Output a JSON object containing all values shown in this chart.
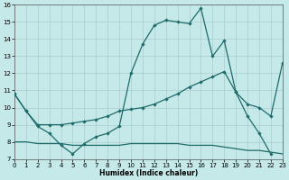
{
  "xlabel": "Humidex (Indice chaleur)",
  "background_color": "#c5e8e8",
  "grid_color": "#aacccc",
  "line_color": "#1e6b6b",
  "x_min": 0,
  "x_max": 23,
  "y_min": 7,
  "y_max": 16,
  "series1_x": [
    0,
    1,
    2,
    3,
    4,
    5,
    6,
    7,
    8,
    9,
    10,
    11,
    12,
    13,
    14,
    15,
    16,
    17,
    18,
    19,
    20,
    21,
    22
  ],
  "series1_y": [
    10.8,
    9.8,
    8.9,
    8.5,
    7.8,
    7.3,
    7.9,
    8.3,
    8.5,
    8.9,
    12.0,
    13.7,
    14.8,
    15.1,
    15.0,
    14.9,
    15.8,
    13.0,
    13.9,
    10.9,
    9.5,
    8.5,
    7.3
  ],
  "series2_x": [
    0,
    1,
    2,
    3,
    4,
    5,
    6,
    7,
    8,
    9,
    10,
    11,
    12,
    13,
    14,
    15,
    16,
    17,
    18,
    19,
    20,
    21,
    22,
    23
  ],
  "series2_y": [
    10.8,
    9.8,
    9.0,
    9.0,
    9.0,
    9.1,
    9.2,
    9.3,
    9.5,
    9.8,
    9.9,
    10.0,
    10.2,
    10.5,
    10.8,
    11.2,
    11.5,
    11.8,
    12.1,
    10.9,
    10.2,
    10.0,
    9.5,
    12.6
  ],
  "series3_x": [
    0,
    1,
    2,
    3,
    4,
    5,
    6,
    7,
    8,
    9,
    10,
    11,
    12,
    13,
    14,
    15,
    16,
    17,
    18,
    19,
    20,
    21,
    22,
    23
  ],
  "series3_y": [
    8.0,
    8.0,
    7.9,
    7.9,
    7.9,
    7.8,
    7.8,
    7.8,
    7.8,
    7.8,
    7.9,
    7.9,
    7.9,
    7.9,
    7.9,
    7.8,
    7.8,
    7.8,
    7.7,
    7.6,
    7.5,
    7.5,
    7.4,
    7.3
  ]
}
